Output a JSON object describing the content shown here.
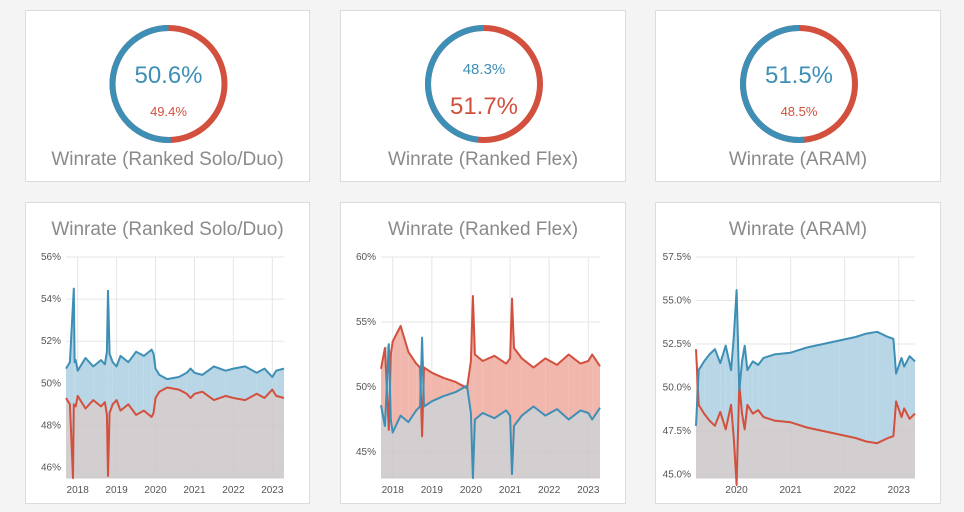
{
  "colors": {
    "blue": "#3e8fb6",
    "red": "#d2503d",
    "blueFill": "#b8d6e5",
    "redFill": "#f1b6ac",
    "greyFill": "#cbc6c8"
  },
  "donuts": [
    {
      "title": "Winrate (Ranked Solo/Duo)",
      "blue_label": "50.6%",
      "red_label": "49.4%",
      "blue": 50.6,
      "red": 49.4,
      "big": "blue"
    },
    {
      "title": "Winrate (Ranked Flex)",
      "blue_label": "48.3%",
      "red_label": "51.7%",
      "blue": 48.3,
      "red": 51.7,
      "big": "red"
    },
    {
      "title": "Winrate (ARAM)",
      "blue_label": "51.5%",
      "red_label": "48.5%",
      "blue": 51.5,
      "red": 48.5,
      "big": "blue"
    }
  ],
  "chart_data": [
    {
      "type": "area",
      "title": "Winrate (Ranked Solo/Duo)",
      "x_ticks": [
        "2018",
        "2019",
        "2020",
        "2021",
        "2022",
        "2023"
      ],
      "x_tick_years": [
        2018,
        2019,
        2020,
        2021,
        2022,
        2023
      ],
      "xlim": [
        2017.7,
        2023.3
      ],
      "y_ticks": [
        "46%",
        "48%",
        "50%",
        "52%",
        "54%",
        "56%"
      ],
      "y_tick_values": [
        46,
        48,
        50,
        52,
        54,
        56
      ],
      "ylim": [
        45.5,
        56
      ],
      "series": [
        {
          "color": "blue",
          "x": [
            2017.7,
            2017.8,
            2017.9,
            2017.92,
            2017.95,
            2018.0,
            2018.2,
            2018.4,
            2018.6,
            2018.7,
            2018.75,
            2018.78,
            2018.82,
            2018.9,
            2019.0,
            2019.1,
            2019.3,
            2019.5,
            2019.7,
            2019.9,
            2019.95,
            2020.0,
            2020.1,
            2020.3,
            2020.6,
            2020.8,
            2020.9,
            2021.0,
            2021.2,
            2021.5,
            2021.8,
            2022.0,
            2022.3,
            2022.6,
            2022.8,
            2022.9,
            2023.0,
            2023.1,
            2023.3
          ],
          "y": [
            50.7,
            51.0,
            54.5,
            51.0,
            51.1,
            50.6,
            51.2,
            50.8,
            51.1,
            50.9,
            51.5,
            54.4,
            51.4,
            51.0,
            50.8,
            51.3,
            51.0,
            51.5,
            51.3,
            51.6,
            51.4,
            50.7,
            50.4,
            50.2,
            50.3,
            50.5,
            50.7,
            50.5,
            50.4,
            50.8,
            50.6,
            50.7,
            50.8,
            50.5,
            50.7,
            50.5,
            50.3,
            50.6,
            50.7
          ]
        },
        {
          "color": "red",
          "x": [
            2017.7,
            2017.8,
            2017.88,
            2017.9,
            2017.95,
            2018.0,
            2018.2,
            2018.4,
            2018.6,
            2018.7,
            2018.75,
            2018.78,
            2018.82,
            2018.9,
            2019.0,
            2019.1,
            2019.3,
            2019.5,
            2019.7,
            2019.9,
            2019.95,
            2020.0,
            2020.1,
            2020.3,
            2020.6,
            2020.8,
            2020.9,
            2021.0,
            2021.2,
            2021.5,
            2021.8,
            2022.0,
            2022.3,
            2022.6,
            2022.8,
            2022.9,
            2023.0,
            2023.1,
            2023.3
          ],
          "y": [
            49.3,
            49.0,
            45.5,
            49.0,
            48.9,
            49.4,
            48.8,
            49.2,
            48.9,
            49.1,
            48.5,
            45.6,
            48.6,
            49.0,
            49.2,
            48.7,
            49.0,
            48.5,
            48.7,
            48.4,
            48.6,
            49.3,
            49.6,
            49.8,
            49.7,
            49.5,
            49.3,
            49.5,
            49.6,
            49.2,
            49.4,
            49.3,
            49.2,
            49.5,
            49.3,
            49.5,
            49.7,
            49.4,
            49.3
          ]
        }
      ]
    },
    {
      "type": "area",
      "title": "Winrate (Ranked Flex)",
      "x_ticks": [
        "2018",
        "2019",
        "2020",
        "2021",
        "2022",
        "2023"
      ],
      "x_tick_years": [
        2018,
        2019,
        2020,
        2021,
        2022,
        2023
      ],
      "xlim": [
        2017.7,
        2023.3
      ],
      "y_ticks": [
        "45%",
        "50%",
        "55%",
        "60%"
      ],
      "y_tick_values": [
        45,
        50,
        55,
        60
      ],
      "ylim": [
        43,
        60
      ],
      "series": [
        {
          "color": "blue",
          "x": [
            2017.7,
            2017.8,
            2017.9,
            2017.95,
            2018.0,
            2018.2,
            2018.4,
            2018.6,
            2018.7,
            2018.75,
            2018.8,
            2019.0,
            2019.3,
            2019.6,
            2019.9,
            2020.0,
            2020.05,
            2020.1,
            2020.3,
            2020.6,
            2020.9,
            2021.0,
            2021.05,
            2021.1,
            2021.3,
            2021.6,
            2021.9,
            2022.2,
            2022.5,
            2022.8,
            2023.0,
            2023.1,
            2023.3
          ],
          "y": [
            48.6,
            47.0,
            53.3,
            47.5,
            46.5,
            47.8,
            47.3,
            48.2,
            48.5,
            53.8,
            48.5,
            48.9,
            49.3,
            49.6,
            50.1,
            48.0,
            43.0,
            47.5,
            48.0,
            47.6,
            48.2,
            47.8,
            43.3,
            47.0,
            47.8,
            48.5,
            47.8,
            48.3,
            47.5,
            48.2,
            48.0,
            47.5,
            48.4
          ]
        },
        {
          "color": "red",
          "x": [
            2017.7,
            2017.8,
            2017.9,
            2017.95,
            2018.0,
            2018.2,
            2018.4,
            2018.6,
            2018.7,
            2018.75,
            2018.8,
            2019.0,
            2019.3,
            2019.6,
            2019.9,
            2020.0,
            2020.05,
            2020.1,
            2020.3,
            2020.6,
            2020.9,
            2021.0,
            2021.05,
            2021.1,
            2021.3,
            2021.6,
            2021.9,
            2022.2,
            2022.5,
            2022.8,
            2023.0,
            2023.1,
            2023.3
          ],
          "y": [
            51.4,
            53.0,
            46.7,
            52.5,
            53.5,
            54.7,
            52.7,
            51.8,
            51.5,
            46.2,
            51.5,
            51.1,
            50.7,
            50.4,
            49.9,
            52.0,
            57.0,
            52.5,
            52.0,
            52.4,
            51.8,
            52.2,
            56.8,
            53.0,
            52.2,
            51.5,
            52.2,
            51.7,
            52.5,
            51.8,
            52.0,
            52.5,
            51.6
          ]
        }
      ]
    },
    {
      "type": "area",
      "title": "Winrate (ARAM)",
      "x_ticks": [
        "2020",
        "2021",
        "2022",
        "2023"
      ],
      "x_tick_years": [
        2020,
        2021,
        2022,
        2023
      ],
      "xlim": [
        2019.25,
        2023.3
      ],
      "y_ticks": [
        "45.0%",
        "47.5%",
        "50.0%",
        "52.5%",
        "55.0%",
        "57.5%"
      ],
      "y_tick_values": [
        45,
        47.5,
        50,
        52.5,
        55,
        57.5
      ],
      "ylim": [
        44.8,
        57.5
      ],
      "series": [
        {
          "color": "blue",
          "x": [
            2019.25,
            2019.3,
            2019.4,
            2019.5,
            2019.6,
            2019.7,
            2019.8,
            2019.9,
            2019.95,
            2020.0,
            2020.05,
            2020.1,
            2020.15,
            2020.2,
            2020.3,
            2020.4,
            2020.5,
            2020.7,
            2021.0,
            2021.3,
            2021.6,
            2021.9,
            2022.2,
            2022.4,
            2022.6,
            2022.8,
            2022.9,
            2022.95,
            2023.05,
            2023.1,
            2023.2,
            2023.3
          ],
          "y": [
            47.8,
            51.0,
            51.5,
            51.9,
            52.2,
            51.4,
            52.4,
            51.0,
            53.0,
            55.6,
            49.8,
            51.5,
            52.4,
            51.0,
            51.5,
            51.3,
            51.7,
            51.9,
            52.0,
            52.3,
            52.5,
            52.7,
            52.9,
            53.1,
            53.2,
            52.9,
            52.8,
            50.8,
            51.7,
            51.2,
            51.8,
            51.5
          ]
        },
        {
          "color": "red",
          "x": [
            2019.25,
            2019.3,
            2019.4,
            2019.5,
            2019.6,
            2019.7,
            2019.8,
            2019.9,
            2019.95,
            2020.0,
            2020.05,
            2020.1,
            2020.15,
            2020.2,
            2020.3,
            2020.4,
            2020.5,
            2020.7,
            2021.0,
            2021.3,
            2021.6,
            2021.9,
            2022.2,
            2022.4,
            2022.6,
            2022.8,
            2022.9,
            2022.95,
            2023.05,
            2023.1,
            2023.2,
            2023.3
          ],
          "y": [
            52.2,
            49.0,
            48.5,
            48.1,
            47.8,
            48.6,
            47.6,
            49.0,
            47.0,
            44.4,
            50.2,
            48.5,
            47.6,
            49.0,
            48.5,
            48.7,
            48.3,
            48.1,
            48.0,
            47.7,
            47.5,
            47.3,
            47.1,
            46.9,
            46.8,
            47.1,
            47.2,
            49.2,
            48.3,
            48.8,
            48.2,
            48.5
          ]
        }
      ]
    }
  ]
}
